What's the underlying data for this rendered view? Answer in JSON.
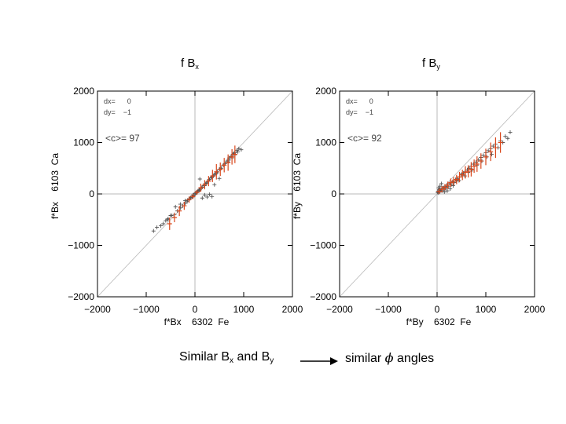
{
  "headings": {
    "left": {
      "base": "f B",
      "sub": "x"
    },
    "right": {
      "base": "f B",
      "sub": "y"
    }
  },
  "caption": {
    "left": {
      "part1": "Similar B",
      "sub1": "x",
      "part2": " and B",
      "sub2": "y"
    },
    "right": {
      "part1": "similar ",
      "symbol": "ϕ",
      "part2": " angles"
    }
  },
  "colors": {
    "black_points": "#555555",
    "red_points": "#d9481c",
    "reference_line": "#b8b8b8",
    "axis": "#000000"
  },
  "chart_data": [
    {
      "type": "scatter",
      "xlabel": "f*Bx    6302  Fe",
      "ylabel": "f*Bx    6103  Ca",
      "xlim": [
        -2000,
        2000
      ],
      "ylim": [
        -2000,
        2000
      ],
      "xticks": [
        -2000,
        -1000,
        0,
        1000,
        2000
      ],
      "yticks": [
        -2000,
        -1000,
        0,
        1000,
        2000
      ],
      "x_tick_labels": [
        "−2000",
        "−1000",
        "0",
        "1000",
        "2000"
      ],
      "y_tick_labels": [
        "−2000",
        "−1000",
        "0",
        "1000",
        "2000"
      ],
      "annotations": {
        "dx": "dx=      0",
        "dy": "dy=    −1",
        "mean": "<c>= 97"
      },
      "reference_line": "y = x",
      "black_series": {
        "x": [
          -850,
          -780,
          -700,
          -650,
          -560,
          -480,
          -420,
          -360,
          -300,
          -250,
          -200,
          -160,
          -120,
          -90,
          -60,
          -40,
          -20,
          0,
          15,
          30,
          45,
          60,
          80,
          100,
          120,
          150,
          180,
          210,
          250,
          290,
          330,
          380,
          420,
          460,
          500,
          540,
          580,
          620,
          660,
          700,
          740,
          780,
          820,
          860,
          900,
          950,
          -600,
          -550,
          -150,
          -100,
          -50,
          50,
          90,
          130,
          200,
          240,
          300,
          350,
          400,
          450,
          520,
          600,
          680,
          760,
          820,
          880,
          -400,
          -300,
          150,
          250,
          350,
          -500,
          -200,
          100,
          200,
          300,
          400,
          500,
          700,
          800
        ],
        "y": [
          -720,
          -650,
          -620,
          -580,
          -500,
          -420,
          -400,
          -330,
          -270,
          -230,
          -180,
          -150,
          -100,
          -70,
          -50,
          -20,
          -30,
          10,
          20,
          25,
          30,
          60,
          70,
          80,
          110,
          130,
          160,
          200,
          230,
          280,
          310,
          350,
          400,
          430,
          480,
          500,
          560,
          590,
          640,
          700,
          730,
          770,
          800,
          850,
          880,
          860,
          -520,
          -480,
          -120,
          -90,
          -60,
          40,
          70,
          120,
          160,
          210,
          280,
          330,
          370,
          410,
          480,
          560,
          620,
          700,
          760,
          820,
          -250,
          -200,
          -80,
          -60,
          -50,
          -420,
          -130,
          290,
          -20,
          -10,
          180,
          300,
          660,
          790
        ]
      },
      "red_series": {
        "x": [
          -520,
          -420,
          -320,
          -220,
          -120,
          -40,
          40,
          120,
          200,
          280,
          360,
          440,
          520,
          600,
          680,
          760,
          820
        ],
        "y": [
          -580,
          -460,
          -330,
          -230,
          -110,
          -50,
          30,
          120,
          180,
          250,
          350,
          430,
          480,
          560,
          610,
          720,
          770
        ],
        "err": [
          120,
          90,
          100,
          80,
          60,
          50,
          50,
          80,
          90,
          100,
          120,
          150,
          130,
          140,
          160,
          150,
          170
        ]
      }
    },
    {
      "type": "scatter",
      "xlabel": "f*By    6302  Fe",
      "ylabel": "f*By    6103  Ca",
      "xlim": [
        -2000,
        2000
      ],
      "ylim": [
        -2000,
        2000
      ],
      "xticks": [
        -2000,
        -1000,
        0,
        1000,
        2000
      ],
      "yticks": [
        -2000,
        -1000,
        0,
        1000,
        2000
      ],
      "x_tick_labels": [
        "−2000",
        "−1000",
        "0",
        "1000",
        "2000"
      ],
      "y_tick_labels": [
        "−2000",
        "−1000",
        "0",
        "1000",
        "2000"
      ],
      "annotations": {
        "dx": "dx=      0",
        "dy": "dy=    −1",
        "mean": "<c>= 92"
      },
      "reference_line": "y = x",
      "black_series": {
        "x": [
          10,
          20,
          30,
          40,
          50,
          60,
          80,
          100,
          120,
          140,
          160,
          180,
          200,
          230,
          260,
          290,
          320,
          350,
          380,
          420,
          460,
          500,
          540,
          580,
          620,
          660,
          700,
          750,
          800,
          850,
          900,
          950,
          1000,
          1050,
          1100,
          1150,
          1200,
          1300,
          1400,
          1500,
          30,
          60,
          90,
          150,
          210,
          270,
          330,
          390,
          450,
          510,
          570,
          640,
          720,
          820,
          920,
          1020,
          1120,
          1250,
          1350,
          1450
        ],
        "y": [
          30,
          50,
          20,
          80,
          40,
          100,
          70,
          60,
          120,
          90,
          150,
          110,
          170,
          140,
          200,
          180,
          240,
          220,
          280,
          300,
          330,
          370,
          400,
          440,
          470,
          500,
          540,
          580,
          620,
          660,
          710,
          750,
          800,
          840,
          880,
          930,
          970,
          1030,
          1120,
          1200,
          120,
          150,
          200,
          40,
          60,
          100,
          160,
          250,
          260,
          390,
          350,
          420,
          470,
          560,
          640,
          720,
          770,
          900,
          1000,
          1080
        ]
      },
      "red_series": {
        "x": [
          40,
          100,
          160,
          220,
          280,
          340,
          400,
          460,
          520,
          580,
          640,
          700,
          760,
          820,
          900,
          1000,
          1100,
          1200,
          1300
        ],
        "y": [
          50,
          90,
          130,
          170,
          220,
          250,
          280,
          330,
          370,
          420,
          440,
          480,
          540,
          580,
          640,
          720,
          820,
          900,
          1000
        ],
        "err": [
          50,
          60,
          60,
          70,
          80,
          80,
          90,
          100,
          100,
          120,
          120,
          140,
          130,
          150,
          150,
          160,
          180,
          200,
          200
        ]
      }
    }
  ]
}
